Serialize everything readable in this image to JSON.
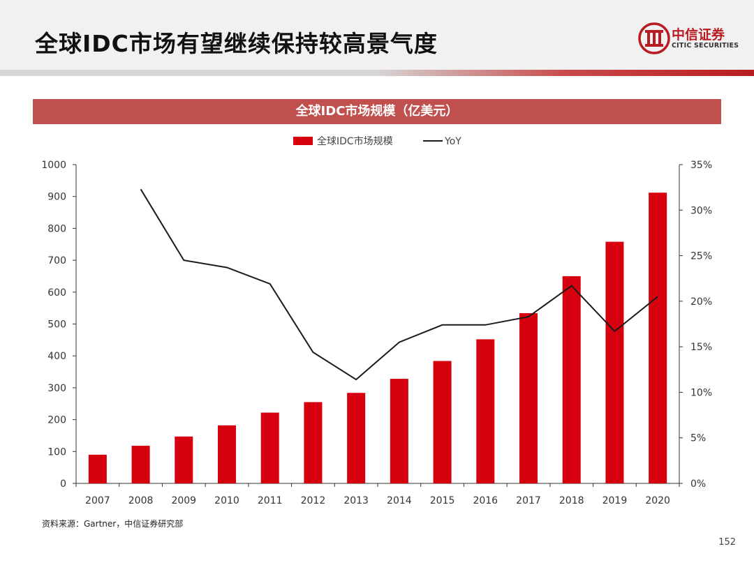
{
  "header": {
    "title": "全球IDC市场有望继续保持较高景气度",
    "logo_cn": "中信证券",
    "logo_en": "CITIC SECURITIES"
  },
  "chart_data": {
    "type": "bar",
    "title": "全球IDC市场规模（亿美元）",
    "categories": [
      "2007",
      "2008",
      "2009",
      "2010",
      "2011",
      "2012",
      "2013",
      "2014",
      "2015",
      "2016",
      "2017",
      "2018",
      "2019",
      "2020"
    ],
    "series": [
      {
        "name": "全球IDC市场规模",
        "type": "bar",
        "axis": "left",
        "color": "#d7000f",
        "values": [
          90,
          118,
          147,
          182,
          222,
          255,
          284,
          328,
          384,
          452,
          534,
          650,
          758,
          912
        ]
      },
      {
        "name": "YoY",
        "type": "line",
        "axis": "right",
        "color": "#1a1a1a",
        "values": [
          null,
          32.3,
          24.5,
          23.7,
          21.9,
          14.4,
          11.4,
          15.5,
          17.4,
          17.4,
          18.3,
          21.7,
          16.7,
          20.5
        ]
      }
    ],
    "y_left": {
      "min": 0,
      "max": 1000,
      "ticks": [
        "0",
        "100",
        "200",
        "300",
        "400",
        "500",
        "600",
        "700",
        "800",
        "900",
        "1000"
      ]
    },
    "y_right": {
      "min": 0,
      "max": 35,
      "ticks": [
        "0%",
        "5%",
        "10%",
        "15%",
        "20%",
        "25%",
        "30%",
        "35%"
      ]
    },
    "legend_position": "top-center",
    "grid": false
  },
  "source": "资料来源：Gartner，中信证券研究部",
  "page_number": "152"
}
